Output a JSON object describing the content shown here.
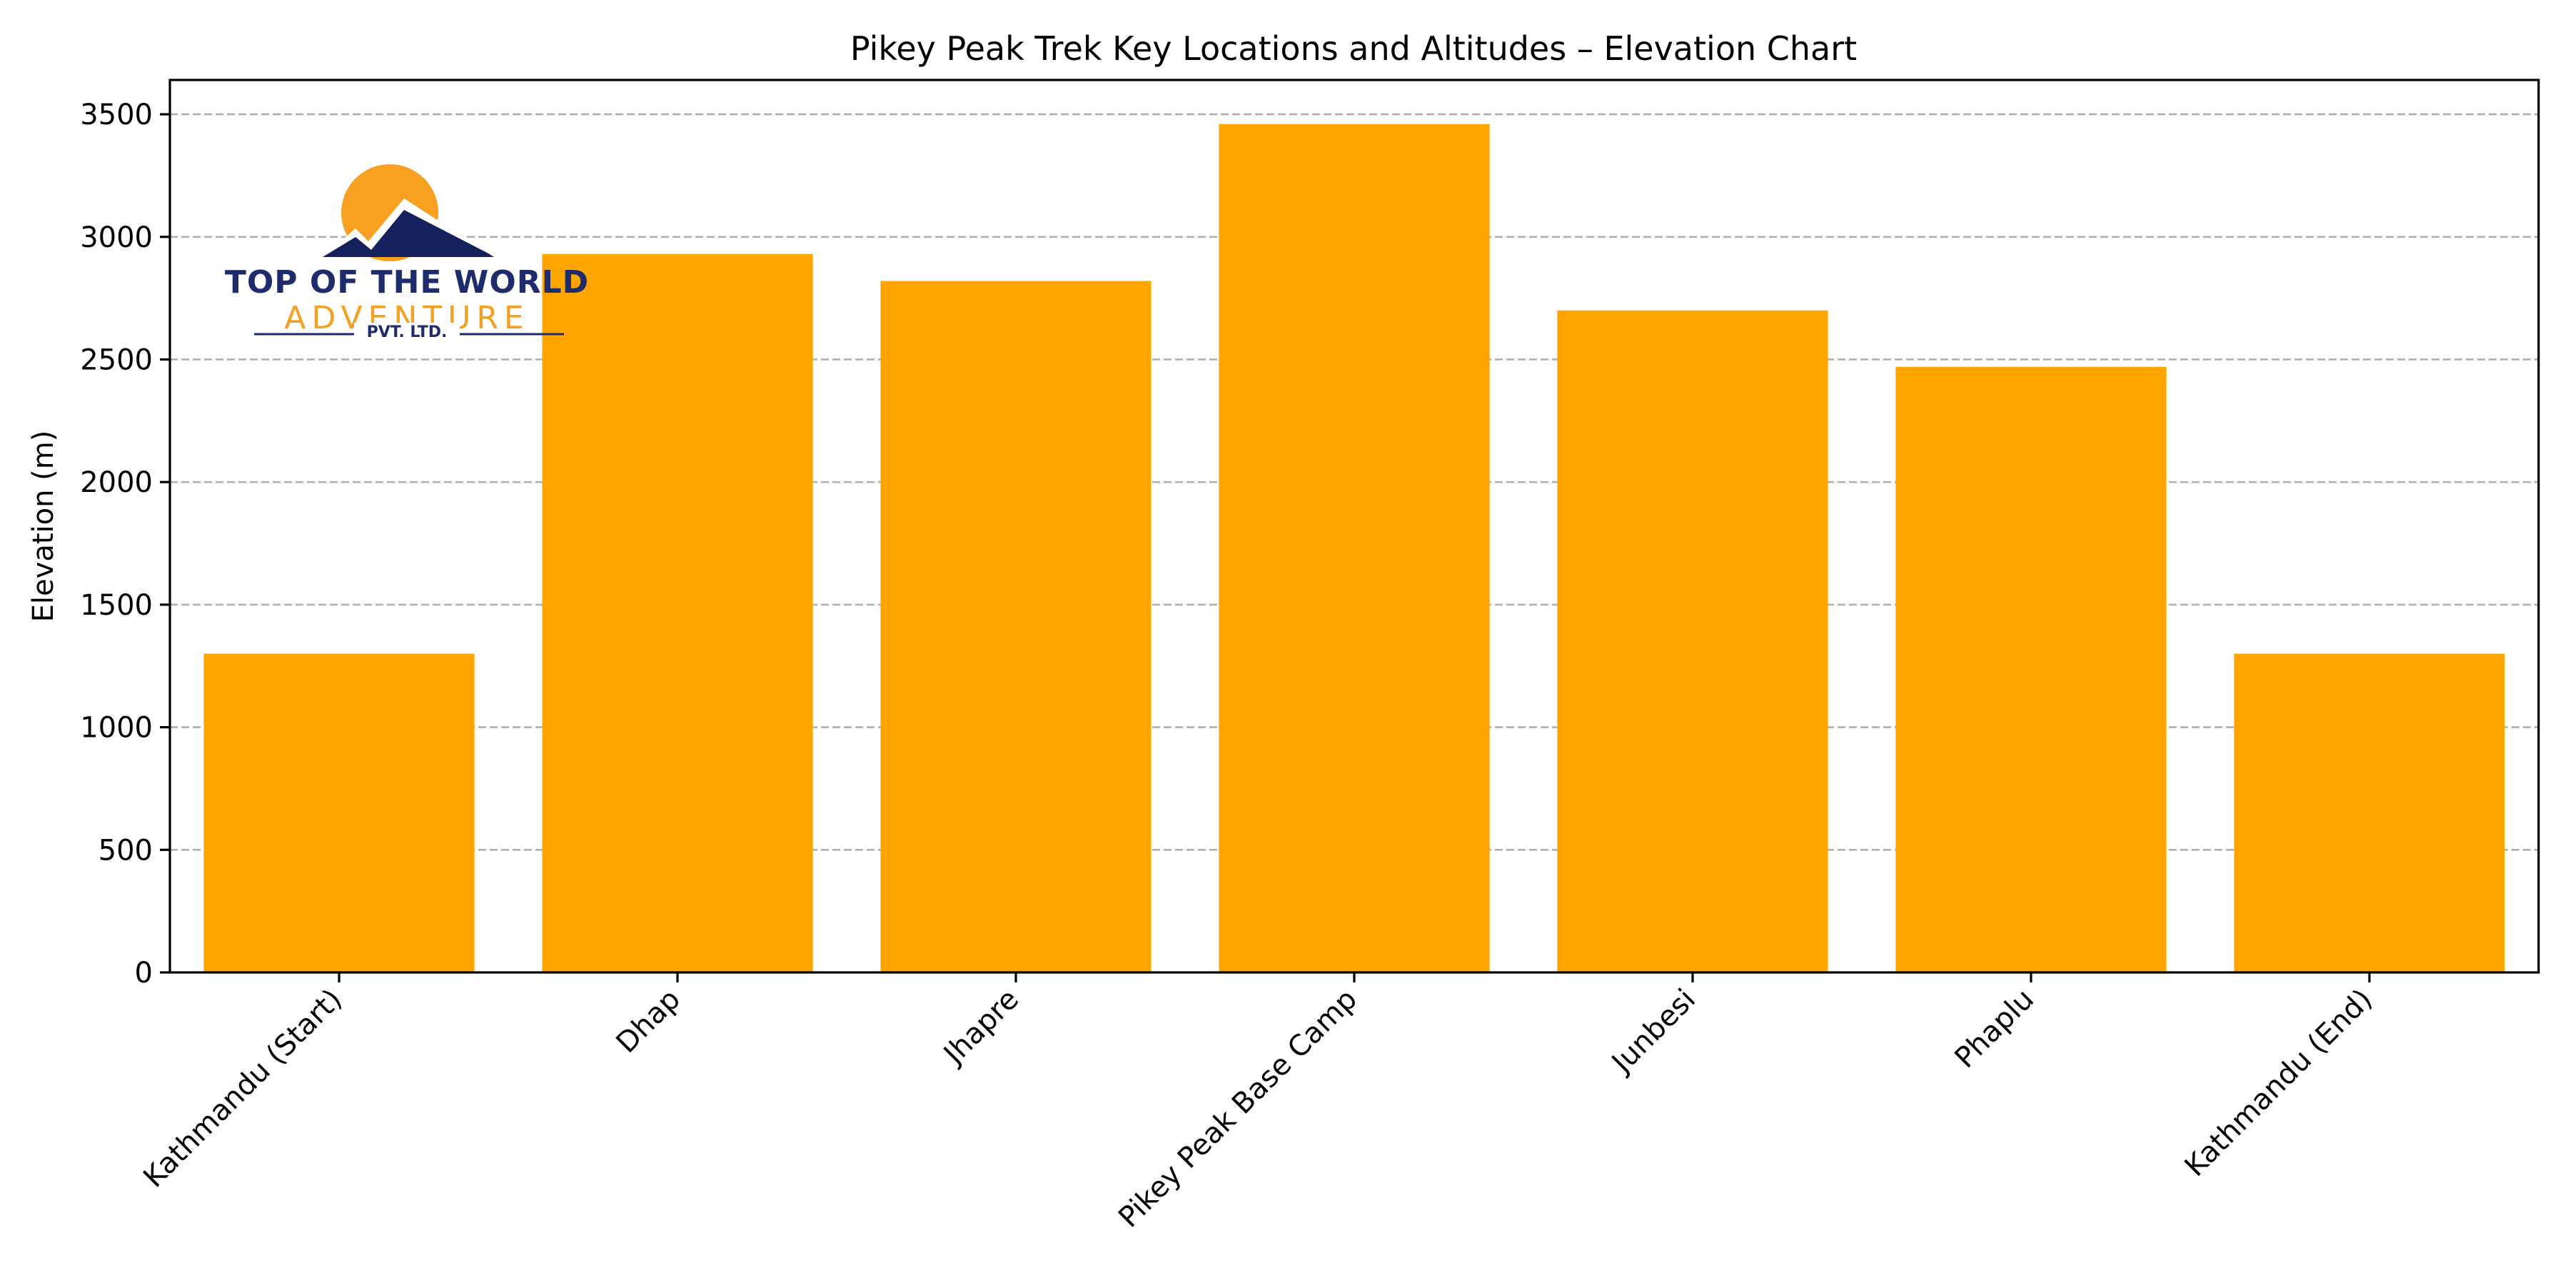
{
  "chart_data": {
    "type": "bar",
    "title": "Pikey Peak Trek Key Locations and Altitudes – Elevation Chart",
    "xlabel": "",
    "ylabel": "Elevation (m)",
    "categories": [
      "Kathmandu (Start)",
      "Dhap",
      "Jhapre",
      "Pikey Peak Base Camp",
      "Junbesi",
      "Phaplu",
      "Kathmandu (End)"
    ],
    "values": [
      1300,
      2930,
      2820,
      3460,
      2700,
      2470,
      1300
    ],
    "ylim": [
      0,
      3640
    ],
    "yticks": [
      0,
      500,
      1000,
      1500,
      2000,
      2500,
      3000,
      3500
    ],
    "grid": "y-dashed",
    "legend": "none",
    "bar_color": "#ffa500"
  },
  "logo": {
    "line1": "TOP OF THE WORLD",
    "line2": "ADVENTURE",
    "line3": "PVT. LTD.",
    "sun_color": "#f7a021",
    "mountain_color": "#15215c",
    "text_color": "#1e2c6b",
    "accent_color": "#f5a020"
  }
}
